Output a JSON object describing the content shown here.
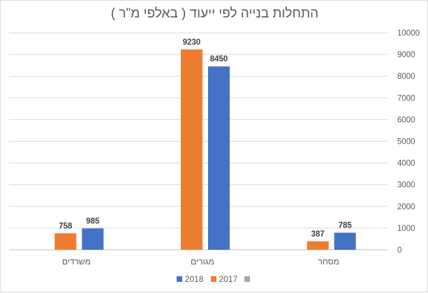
{
  "chart_data": {
    "type": "bar",
    "title": "התחלות בנייה לפי ייעוד ( באלפי מ\"ר )",
    "categories": [
      "משרדים",
      "מגורים",
      "מסחר"
    ],
    "series": [
      {
        "name": "2017",
        "color": "#ED7D31",
        "values": [
          758,
          9230,
          387
        ]
      },
      {
        "name": "2018",
        "color": "#4472C4",
        "values": [
          985,
          8450,
          785
        ]
      }
    ],
    "yticks": [
      "0",
      "1000",
      "2000",
      "3000",
      "4000",
      "5000",
      "6000",
      "7000",
      "8000",
      "9000",
      "10000"
    ],
    "ylim": [
      0,
      10000
    ],
    "y_axis_side": "right",
    "grid": true,
    "legend": {
      "placement": "bottom",
      "entries": [
        {
          "name": "2018",
          "color": "#4472C4"
        },
        {
          "name": "2017",
          "color": "#ED7D31"
        },
        {
          "name": "",
          "color": "#A5A5A5"
        }
      ]
    }
  }
}
